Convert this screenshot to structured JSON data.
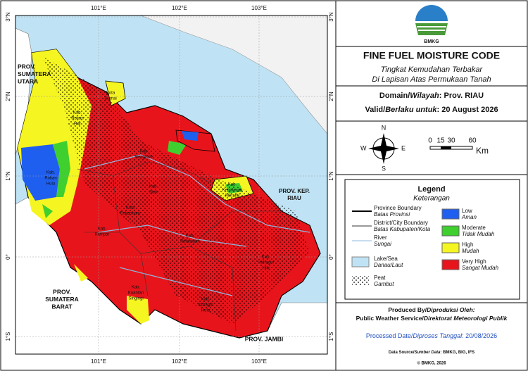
{
  "header": {
    "logo_text": "BMKG",
    "title": "FINE FUEL MOISTURE CODE",
    "subtitle_1": "Tingkat Kemudahan Terbakar",
    "subtitle_2": "Di Lapisan Atas Permukaan Tanah"
  },
  "domain": {
    "label": "Domain/",
    "label_id": "Wilayah",
    "value": ": Prov. RIAU"
  },
  "valid": {
    "label": "Valid/",
    "label_id": "Berlaku untuk",
    "value": ": 20 August 2026"
  },
  "compass": {
    "north": "N",
    "south": "S",
    "east": "E",
    "west": "W"
  },
  "scale": {
    "ticks": [
      "0",
      "15",
      "30",
      "60"
    ],
    "unit": "Km"
  },
  "legend": {
    "title": "Legend",
    "title_id": "Keterangan",
    "lines": [
      {
        "label": "Province Boundary",
        "label_id": "Batas Provinsi",
        "color": "#000000"
      },
      {
        "label": "District/City Boundary",
        "label_id": "Batas Kabupaten/Kota",
        "color": "#333333"
      },
      {
        "label": "River",
        "label_id": "Sungai",
        "color": "#8fb8e0"
      }
    ],
    "areas": [
      {
        "label": "Lake/Sea",
        "label_id": "Danau/Laut",
        "color": "#bfe3f5"
      },
      {
        "label": "Peat",
        "label_id": "Gambut",
        "color": "#ffffff"
      }
    ],
    "classes": [
      {
        "label": "Low",
        "label_id": "Aman",
        "color": "#1f5ff0"
      },
      {
        "label": "Moderate",
        "label_id": "Tidak Mudah",
        "color": "#3fcf2f"
      },
      {
        "label": "High",
        "label_id": "Mudah",
        "color": "#f5f521"
      },
      {
        "label": "Very High",
        "label_id": "Sangat Mudah",
        "color": "#e8141b"
      }
    ]
  },
  "footer": {
    "produced_label": "Produced By/",
    "produced_label_id": "Diproduksi Oleh:",
    "producer": "Public Weather Service/",
    "producer_id": "Direktorat Meteorologi Publik",
    "processed_label": "Processed Date/",
    "processed_label_id": "Diproses Tanggal",
    "processed_value": ": 20/08/2026",
    "source_label": "Data Source/",
    "source_label_id": "Sumber Data",
    "source_value": ": BMKG, BIG, IFS",
    "copyright": "© BMKG, 2026"
  },
  "map": {
    "lon_labels": [
      "101°E",
      "102°E",
      "103°E"
    ],
    "lat_labels": [
      "3°N",
      "2°N",
      "1°N",
      "0°",
      "1°S"
    ],
    "place_labels": [
      {
        "lines": [
          "PROV.",
          "SUMATERA",
          "UTARA"
        ]
      },
      {
        "lines": [
          "Kota",
          "Dumai"
        ]
      },
      {
        "lines": [
          "Kab.",
          "Rokan",
          "Hilir"
        ]
      },
      {
        "lines": [
          "Kab.",
          "Bengkalis"
        ]
      },
      {
        "lines": [
          "Kab.",
          "Rokan",
          "Hulu"
        ]
      },
      {
        "lines": [
          "Kab.",
          "Siak"
        ]
      },
      {
        "lines": [
          "Kota",
          "Pekanbaru"
        ]
      },
      {
        "lines": [
          "Kab.",
          "Kampar"
        ]
      },
      {
        "lines": [
          "Kab.",
          "Pelalawan"
        ]
      },
      {
        "lines": [
          "Kab.",
          "Indragiri",
          "Hilir"
        ]
      },
      {
        "lines": [
          "Kab.",
          "Kuantan",
          "Singingi"
        ]
      },
      {
        "lines": [
          "Kab.",
          "Indragiri",
          "Hulu"
        ]
      },
      {
        "lines": [
          "Kab.",
          "Kepulauan",
          "Meranti"
        ]
      },
      {
        "lines": [
          "PROV. KEP.",
          "RIAU"
        ]
      },
      {
        "lines": [
          "PROV.",
          "SUMATERA",
          "BARAT"
        ]
      },
      {
        "lines": [
          "PROV. JAMBI"
        ]
      }
    ]
  }
}
